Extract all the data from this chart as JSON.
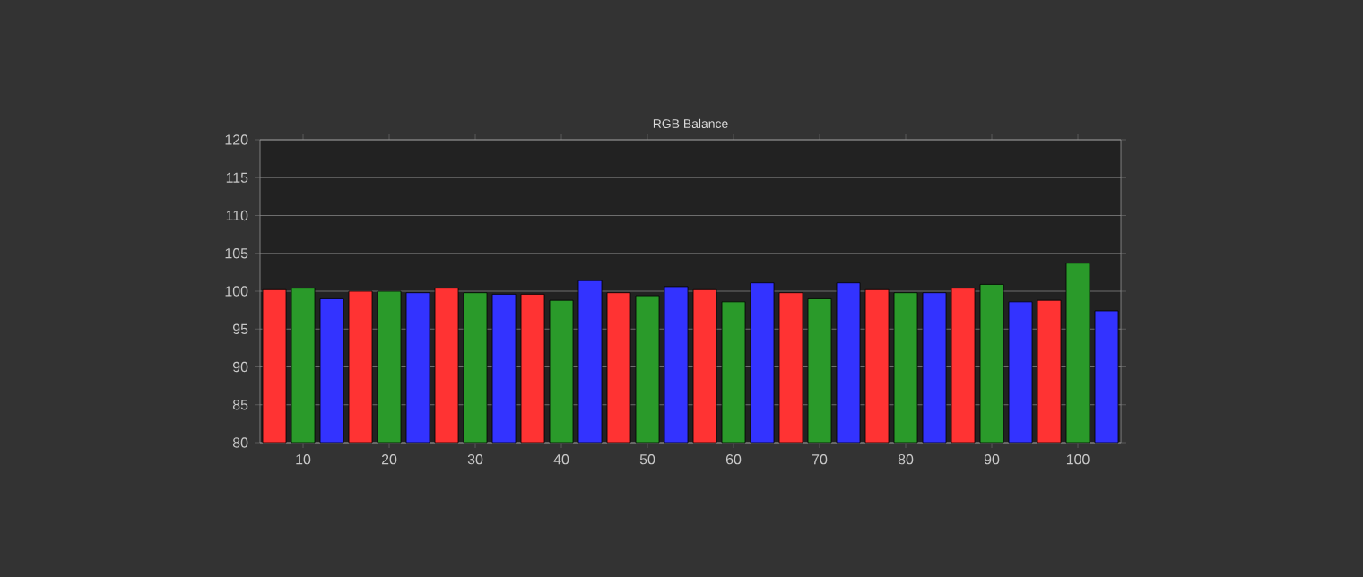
{
  "chart_data": {
    "type": "bar",
    "title": "RGB Balance",
    "categories": [
      "10",
      "20",
      "30",
      "40",
      "50",
      "60",
      "70",
      "80",
      "90",
      "100"
    ],
    "series": [
      {
        "color": "#ff3333",
        "values": [
          100.2,
          100.0,
          100.4,
          99.6,
          99.8,
          100.2,
          99.8,
          100.2,
          100.4,
          98.8
        ]
      },
      {
        "color": "#2a9a2a",
        "values": [
          100.4,
          100.0,
          99.8,
          98.8,
          99.4,
          98.6,
          99.0,
          99.8,
          100.9,
          103.7
        ]
      },
      {
        "color": "#3333ff",
        "values": [
          99.0,
          99.8,
          99.6,
          101.4,
          100.6,
          101.1,
          101.1,
          99.8,
          98.6,
          97.4
        ]
      }
    ],
    "ylim": [
      80,
      120
    ],
    "yticks": [
      80,
      85,
      90,
      95,
      100,
      105,
      110,
      115,
      120
    ],
    "grid": "y"
  }
}
